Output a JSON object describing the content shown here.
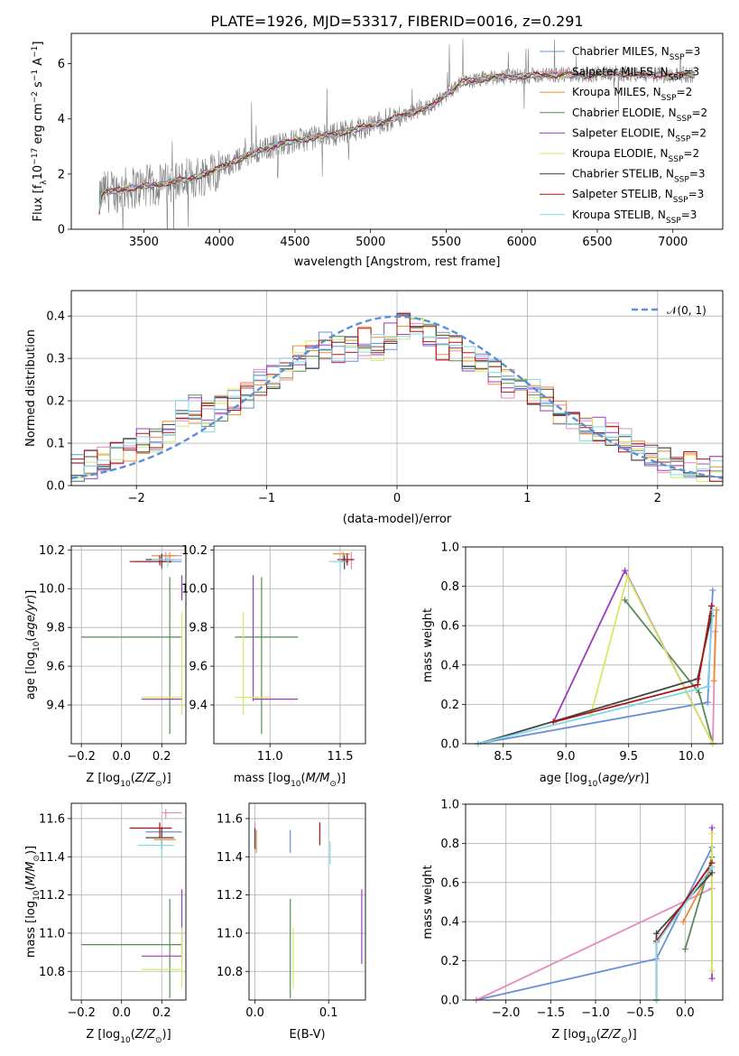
{
  "figure": {
    "title": "PLATE=1926, MJD=53317, FIBERID=0016, z=0.291"
  },
  "colors": {
    "Chabrier MILES": "#6a8fd8",
    "Salpeter MILES": "#e58abd",
    "Kroupa MILES": "#f08a33",
    "Chabrier ELODIE": "#5a8a5a",
    "Salpeter ELODIE": "#9b3cc0",
    "Kroupa ELODIE": "#d8e860",
    "Chabrier STELIB": "#444444",
    "Salpeter STELIB": "#b01010",
    "Kroupa STELIB": "#80d8e8",
    "data": "#808080",
    "normal": "#5b8fd6"
  },
  "chart_data": [
    {
      "id": "spectrum",
      "type": "line",
      "title": "PLATE=1926, MJD=53317, FIBERID=0016, z=0.291",
      "xlabel": "wavelength [Angstrom, rest frame]",
      "ylabel": "Flux [f_λ 10^-17 erg cm^-2 s^-1 A^-1]",
      "xlim": [
        3020,
        7330
      ],
      "ylim": [
        0,
        7.1
      ],
      "xticks": [
        "3500",
        "4000",
        "4500",
        "5000",
        "5500",
        "6000",
        "6500",
        "7000"
      ],
      "yticks": [
        "0",
        "2",
        "4",
        "6"
      ],
      "legend_position": "top-right",
      "legend": [
        "Chabrier MILES, N_SSP=3",
        "Salpeter MILES, N_SSP=3",
        "Kroupa MILES, N_SSP=2",
        "Chabrier ELODIE, N_SSP=2",
        "Salpeter ELODIE, N_SSP=2",
        "Kroupa ELODIE, N_SSP=2",
        "Chabrier STELIB, N_SSP=3",
        "Salpeter STELIB, N_SSP=3",
        "Kroupa STELIB, N_SSP=3"
      ],
      "continuum": [
        [
          3200,
          0.0
        ],
        [
          3210,
          1.2
        ],
        [
          3250,
          1.4
        ],
        [
          3300,
          1.35
        ],
        [
          3400,
          1.5
        ],
        [
          3500,
          1.55
        ],
        [
          3600,
          1.6
        ],
        [
          3700,
          1.75
        ],
        [
          3800,
          1.8
        ],
        [
          3900,
          2.0
        ],
        [
          4000,
          2.2
        ],
        [
          4200,
          2.7
        ],
        [
          4400,
          3.1
        ],
        [
          4600,
          3.3
        ],
        [
          4800,
          3.5
        ],
        [
          5000,
          3.75
        ],
        [
          5200,
          4.1
        ],
        [
          5400,
          4.45
        ],
        [
          5600,
          5.3
        ],
        [
          5800,
          5.5
        ],
        [
          6000,
          5.55
        ],
        [
          6200,
          5.6
        ],
        [
          6400,
          5.6
        ],
        [
          6600,
          5.65
        ],
        [
          6800,
          5.6
        ],
        [
          7000,
          5.6
        ],
        [
          7150,
          5.6
        ]
      ]
    },
    {
      "id": "residuals",
      "type": "line",
      "xlabel": "(data-model)/error",
      "ylabel": "Normed distribution",
      "xlim": [
        -2.5,
        2.5
      ],
      "ylim": [
        0,
        0.46
      ],
      "xticks": [
        "-2",
        "-1",
        "0",
        "1",
        "2"
      ],
      "yticks": [
        "0.0",
        "0.1",
        "0.2",
        "0.3",
        "0.4"
      ],
      "legend": [
        "𝒩(0, 1)"
      ],
      "legend_position": "top-right",
      "bin_width": 0.1,
      "histogram_centers": [
        -2.45,
        -2.35,
        -2.25,
        -2.15,
        -2.05,
        -1.95,
        -1.85,
        -1.75,
        -1.65,
        -1.55,
        -1.45,
        -1.35,
        -1.25,
        -1.15,
        -1.05,
        -0.95,
        -0.85,
        -0.75,
        -0.65,
        -0.55,
        -0.45,
        -0.35,
        -0.25,
        -0.15,
        -0.05,
        0.05,
        0.15,
        0.25,
        0.35,
        0.45,
        0.55,
        0.65,
        0.75,
        0.85,
        0.95,
        1.05,
        1.15,
        1.25,
        1.35,
        1.45,
        1.55,
        1.65,
        1.75,
        1.85,
        1.95,
        2.05,
        2.15,
        2.25,
        2.35,
        2.45
      ],
      "histogram_base": [
        0.04,
        0.05,
        0.07,
        0.08,
        0.09,
        0.1,
        0.11,
        0.13,
        0.17,
        0.18,
        0.16,
        0.18,
        0.2,
        0.21,
        0.24,
        0.25,
        0.28,
        0.3,
        0.31,
        0.33,
        0.32,
        0.32,
        0.34,
        0.33,
        0.35,
        0.38,
        0.37,
        0.35,
        0.33,
        0.32,
        0.3,
        0.29,
        0.27,
        0.24,
        0.23,
        0.22,
        0.2,
        0.17,
        0.15,
        0.14,
        0.13,
        0.12,
        0.11,
        0.08,
        0.07,
        0.06,
        0.05,
        0.05,
        0.04,
        0.04
      ]
    },
    {
      "id": "age-vs-Z",
      "type": "scatter",
      "xlabel": "Z [log10(Z/Z⊙)]",
      "ylabel": "age  [log10(age/yr)]",
      "xlim": [
        -0.25,
        0.32
      ],
      "ylim": [
        9.2,
        10.22
      ],
      "xticks": [
        "-0.2",
        "0.0",
        "0.2"
      ],
      "yticks": [
        "9.4",
        "9.6",
        "9.8",
        "10.0",
        "10.2"
      ]
    },
    {
      "id": "age-vs-mass",
      "type": "scatter",
      "xlabel": "mass [log10(M/M⊙)]",
      "xlim": [
        10.6,
        11.68
      ],
      "ylim": [
        9.2,
        10.22
      ],
      "xticks": [
        "11.0",
        "11.5"
      ],
      "yticks": [
        "9.4",
        "9.6",
        "9.8",
        "10.0",
        "10.2"
      ]
    },
    {
      "id": "mass-weight-vs-age",
      "type": "line",
      "xlabel": "age  [log10(age/yr)]",
      "ylabel": "mass weight",
      "xlim": [
        8.2,
        10.25
      ],
      "ylim": [
        0,
        1
      ],
      "xticks": [
        "8.5",
        "9.0",
        "9.5",
        "10.0"
      ],
      "yticks": [
        "0.0",
        "0.2",
        "0.4",
        "0.6",
        "0.8",
        "1.0"
      ]
    },
    {
      "id": "mass-vs-Z",
      "type": "scatter",
      "xlabel": "Z [log10(Z/Z⊙)]",
      "ylabel": "mass [log10(M/M⊙)]",
      "xlim": [
        -0.25,
        0.32
      ],
      "ylim": [
        10.65,
        11.68
      ],
      "xticks": [
        "-0.2",
        "0.0",
        "0.2"
      ],
      "yticks": [
        "10.8",
        "11.0",
        "11.2",
        "11.4",
        "11.6"
      ]
    },
    {
      "id": "mass-vs-EBV",
      "type": "scatter",
      "xlabel": "E(B-V)",
      "xlim": [
        -0.008,
        0.15
      ],
      "ylim": [
        10.65,
        11.68
      ],
      "xticks": [
        "0.0",
        "0.1"
      ],
      "yticks": [
        "10.8",
        "11.0",
        "11.2",
        "11.4",
        "11.6"
      ]
    },
    {
      "id": "mass-weight-vs-Z",
      "type": "line",
      "xlabel": "Z [log10(Z/Z⊙)]",
      "ylabel": "mass weight",
      "xlim": [
        -2.45,
        0.42
      ],
      "ylim": [
        0,
        1
      ],
      "xticks": [
        "-2.0",
        "-1.5",
        "-1.0",
        "-0.5",
        "0.0"
      ],
      "yticks": [
        "0.0",
        "0.2",
        "0.4",
        "0.6",
        "0.8",
        "1.0"
      ]
    }
  ],
  "model_points": {
    "age_vs_Z": [
      {
        "m": "Chabrier MILES",
        "x": 0.2,
        "xe": [
          0.07,
          0.3
        ],
        "y": 10.14,
        "ye": [
          10.1,
          10.18
        ]
      },
      {
        "m": "Salpeter MILES",
        "x": 0.22,
        "xe": [
          0.2,
          0.3
        ],
        "y": 10.17,
        "ye": [
          10.14,
          10.19
        ]
      },
      {
        "m": "Kroupa MILES",
        "x": 0.24,
        "xe": [
          0.15,
          0.27
        ],
        "y": 10.17,
        "ye": [
          10.13,
          10.19
        ]
      },
      {
        "m": "Chabrier ELODIE",
        "x": 0.24,
        "xe": [
          -0.2,
          0.3
        ],
        "y": 9.75,
        "ye": [
          9.25,
          10.06
        ]
      },
      {
        "m": "Salpeter ELODIE",
        "x": 0.3,
        "xe": [
          0.3,
          0.3
        ],
        "y": 10.0,
        "ye": [
          9.94,
          10.07
        ]
      },
      {
        "m": "Kroupa ELODIE",
        "x": 0.3,
        "xe": [
          0.3,
          0.3
        ],
        "y": 9.58,
        "ye": [
          9.35,
          9.88
        ]
      },
      {
        "m": "Chabrier STELIB",
        "x": 0.2,
        "xe": [
          0.12,
          0.26
        ],
        "y": 10.15,
        "ye": [
          10.11,
          10.18
        ]
      },
      {
        "m": "Salpeter STELIB",
        "x": 0.19,
        "xe": [
          0.04,
          0.25
        ],
        "y": 10.14,
        "ye": [
          10.12,
          10.17
        ]
      },
      {
        "m": "Kroupa STELIB",
        "x": 0.23,
        "xe": [
          0.15,
          0.3
        ],
        "y": 10.15,
        "ye": [
          10.11,
          10.18
        ]
      },
      {
        "m": "Salpeter ELODIE",
        "x": 0.2,
        "xe": [
          0.1,
          0.3
        ],
        "y": 9.43,
        "ye": [
          9.43,
          9.43
        ]
      },
      {
        "m": "Kroupa ELODIE",
        "x": 0.2,
        "xe": [
          0.1,
          0.3
        ],
        "y": 9.44,
        "ye": [
          9.44,
          9.44
        ]
      }
    ],
    "age_vs_mass": [
      {
        "m": "Chabrier MILES",
        "x": 11.53,
        "xe": [
          11.5,
          11.56
        ],
        "y": 10.15,
        "ye": [
          10.11,
          10.18
        ]
      },
      {
        "m": "Salpeter MILES",
        "x": 11.58,
        "xe": [
          11.55,
          11.6
        ],
        "y": 10.15,
        "ye": [
          10.1,
          10.19
        ]
      },
      {
        "m": "Kroupa MILES",
        "x": 11.52,
        "xe": [
          11.45,
          11.57
        ],
        "y": 10.18,
        "ye": [
          10.14,
          10.19
        ]
      },
      {
        "m": "Chabrier ELODIE",
        "x": 10.94,
        "xe": [
          10.75,
          11.2
        ],
        "y": 9.75,
        "ye": [
          9.25,
          10.06
        ]
      },
      {
        "m": "Salpeter ELODIE",
        "x": 10.88,
        "xe": [
          10.88,
          10.88
        ],
        "y": 10.0,
        "ye": [
          9.42,
          10.07
        ]
      },
      {
        "m": "Kroupa ELODIE",
        "x": 10.81,
        "xe": [
          10.81,
          10.81
        ],
        "y": 9.58,
        "ye": [
          9.35,
          9.88
        ]
      },
      {
        "m": "Chabrier STELIB",
        "x": 11.53,
        "xe": [
          11.5,
          11.56
        ],
        "y": 10.14,
        "ye": [
          10.1,
          10.17
        ]
      },
      {
        "m": "Salpeter STELIB",
        "x": 11.55,
        "xe": [
          11.48,
          11.6
        ],
        "y": 10.15,
        "ye": [
          10.12,
          10.18
        ]
      },
      {
        "m": "Kroupa STELIB",
        "x": 11.5,
        "xe": [
          11.42,
          11.54
        ],
        "y": 10.14,
        "ye": [
          10.08,
          10.17
        ]
      },
      {
        "m": "Salpeter ELODIE",
        "x": 10.9,
        "xe": [
          10.88,
          11.2
        ],
        "y": 9.43,
        "ye": [
          9.43,
          9.43
        ]
      },
      {
        "m": "Kroupa ELODIE",
        "x": 10.8,
        "xe": [
          10.75,
          11.0
        ],
        "y": 9.44,
        "ye": [
          9.44,
          9.44
        ]
      }
    ],
    "mass_vs_Z": [
      {
        "m": "Chabrier MILES",
        "x": 0.2,
        "xe": [
          0.12,
          0.3
        ],
        "y": 11.53,
        "ye": [
          11.49,
          11.56
        ]
      },
      {
        "m": "Salpeter MILES",
        "x": 0.22,
        "xe": [
          0.2,
          0.3
        ],
        "y": 11.63,
        "ye": [
          11.6,
          11.65
        ]
      },
      {
        "m": "Kroupa MILES",
        "x": 0.2,
        "xe": [
          0.16,
          0.27
        ],
        "y": 11.49,
        "ye": [
          11.44,
          11.52
        ]
      },
      {
        "m": "Chabrier ELODIE",
        "x": 0.24,
        "xe": [
          -0.2,
          0.3
        ],
        "y": 10.94,
        "ye": [
          10.66,
          11.18
        ]
      },
      {
        "m": "Salpeter ELODIE",
        "x": 0.3,
        "xe": [
          0.1,
          0.3
        ],
        "y": 10.88,
        "ye": [
          10.84,
          11.23
        ]
      },
      {
        "m": "Kroupa ELODIE",
        "x": 0.3,
        "xe": [
          0.1,
          0.3
        ],
        "y": 10.81,
        "ye": [
          10.71,
          11.03
        ]
      },
      {
        "m": "Chabrier STELIB",
        "x": 0.2,
        "xe": [
          0.12,
          0.26
        ],
        "y": 11.5,
        "ye": [
          11.44,
          11.55
        ]
      },
      {
        "m": "Salpeter STELIB",
        "x": 0.19,
        "xe": [
          0.04,
          0.25
        ],
        "y": 11.55,
        "ye": [
          11.5,
          11.58
        ]
      },
      {
        "m": "Kroupa STELIB",
        "x": 0.2,
        "xe": [
          0.08,
          0.26
        ],
        "y": 11.46,
        "ye": [
          11.4,
          11.5
        ]
      }
    ],
    "mass_vs_EBV": [
      {
        "m": "Chabrier MILES",
        "x": 0.048,
        "y": 11.48,
        "ye": [
          11.42,
          11.54
        ]
      },
      {
        "m": "Salpeter MILES",
        "x": 0.0,
        "y": 11.5,
        "ye": [
          11.45,
          11.58
        ]
      },
      {
        "m": "Kroupa MILES",
        "x": 0.002,
        "y": 11.48,
        "ye": [
          11.42,
          11.54
        ]
      },
      {
        "m": "Chabrier ELODIE",
        "x": 0.048,
        "y": 10.94,
        "ye": [
          10.66,
          11.18
        ]
      },
      {
        "m": "Salpeter ELODIE",
        "x": 0.145,
        "y": 11.03,
        "ye": [
          10.84,
          11.23
        ]
      },
      {
        "m": "Kroupa ELODIE",
        "x": 0.052,
        "y": 10.87,
        "ye": [
          10.71,
          11.03
        ]
      },
      {
        "m": "Chabrier STELIB",
        "x": 0.0,
        "y": 11.5,
        "ye": [
          11.44,
          11.55
        ]
      },
      {
        "m": "Salpeter STELIB",
        "x": 0.088,
        "y": 11.52,
        "ye": [
          11.46,
          11.58
        ]
      },
      {
        "m": "Kroupa STELIB",
        "x": 0.102,
        "y": 11.43,
        "ye": [
          11.36,
          11.48
        ]
      }
    ],
    "weight_vs_age": [
      {
        "m": "Chabrier MILES",
        "pts": [
          [
            8.3,
            0.0
          ],
          [
            10.13,
            0.21
          ],
          [
            10.17,
            0.78
          ]
        ]
      },
      {
        "m": "Salpeter MILES",
        "pts": [
          [
            10.17,
            0.0
          ],
          [
            10.19,
            0.57
          ]
        ]
      },
      {
        "m": "Kroupa MILES",
        "pts": [
          [
            10.18,
            0.32
          ],
          [
            10.2,
            0.68
          ]
        ]
      },
      {
        "m": "Chabrier ELODIE",
        "pts": [
          [
            9.47,
            0.73
          ],
          [
            10.06,
            0.26
          ],
          [
            10.17,
            0.0
          ]
        ]
      },
      {
        "m": "Salpeter ELODIE",
        "pts": [
          [
            8.9,
            0.11
          ],
          [
            9.47,
            0.88
          ],
          [
            10.17,
            0.0
          ]
        ]
      },
      {
        "m": "Kroupa ELODIE",
        "pts": [
          [
            9.2,
            0.15
          ],
          [
            9.49,
            0.85
          ],
          [
            10.17,
            0.0
          ]
        ]
      },
      {
        "m": "Chabrier STELIB",
        "pts": [
          [
            8.3,
            0.0
          ],
          [
            10.05,
            0.33
          ],
          [
            10.16,
            0.65
          ]
        ]
      },
      {
        "m": "Salpeter STELIB",
        "pts": [
          [
            8.9,
            0.11
          ],
          [
            10.05,
            0.3
          ],
          [
            10.16,
            0.7
          ]
        ]
      },
      {
        "m": "Kroupa STELIB",
        "pts": [
          [
            8.3,
            0.0
          ],
          [
            10.13,
            0.29
          ],
          [
            10.17,
            0.68
          ]
        ]
      }
    ],
    "weight_vs_Z": [
      {
        "m": "Chabrier MILES",
        "pts": [
          [
            -2.33,
            0.0
          ],
          [
            -0.32,
            0.21
          ],
          [
            0.3,
            0.78
          ]
        ]
      },
      {
        "m": "Salpeter MILES",
        "pts": [
          [
            -2.33,
            0.0
          ],
          [
            0.3,
            0.57
          ]
        ]
      },
      {
        "m": "Kroupa MILES",
        "pts": [
          [
            -0.02,
            0.4
          ],
          [
            0.3,
            0.68
          ]
        ]
      },
      {
        "m": "Chabrier ELODIE",
        "pts": [
          [
            0.0,
            0.26
          ],
          [
            0.3,
            0.73
          ]
        ]
      },
      {
        "m": "Salpeter ELODIE",
        "pts": [
          [
            0.3,
            0.11
          ],
          [
            0.3,
            0.88
          ]
        ]
      },
      {
        "m": "Kroupa ELODIE",
        "pts": [
          [
            0.3,
            0.15
          ],
          [
            0.3,
            0.85
          ]
        ]
      },
      {
        "m": "Chabrier STELIB",
        "pts": [
          [
            -0.32,
            0.0
          ],
          [
            -0.32,
            0.34
          ],
          [
            0.3,
            0.65
          ]
        ]
      },
      {
        "m": "Salpeter STELIB",
        "pts": [
          [
            -0.32,
            0.0
          ],
          [
            -0.32,
            0.3
          ],
          [
            0.3,
            0.7
          ]
        ]
      },
      {
        "m": "Kroupa STELIB",
        "pts": [
          [
            -0.32,
            0.0
          ],
          [
            -0.32,
            0.29
          ],
          [
            0.3,
            0.68
          ]
        ]
      }
    ]
  }
}
